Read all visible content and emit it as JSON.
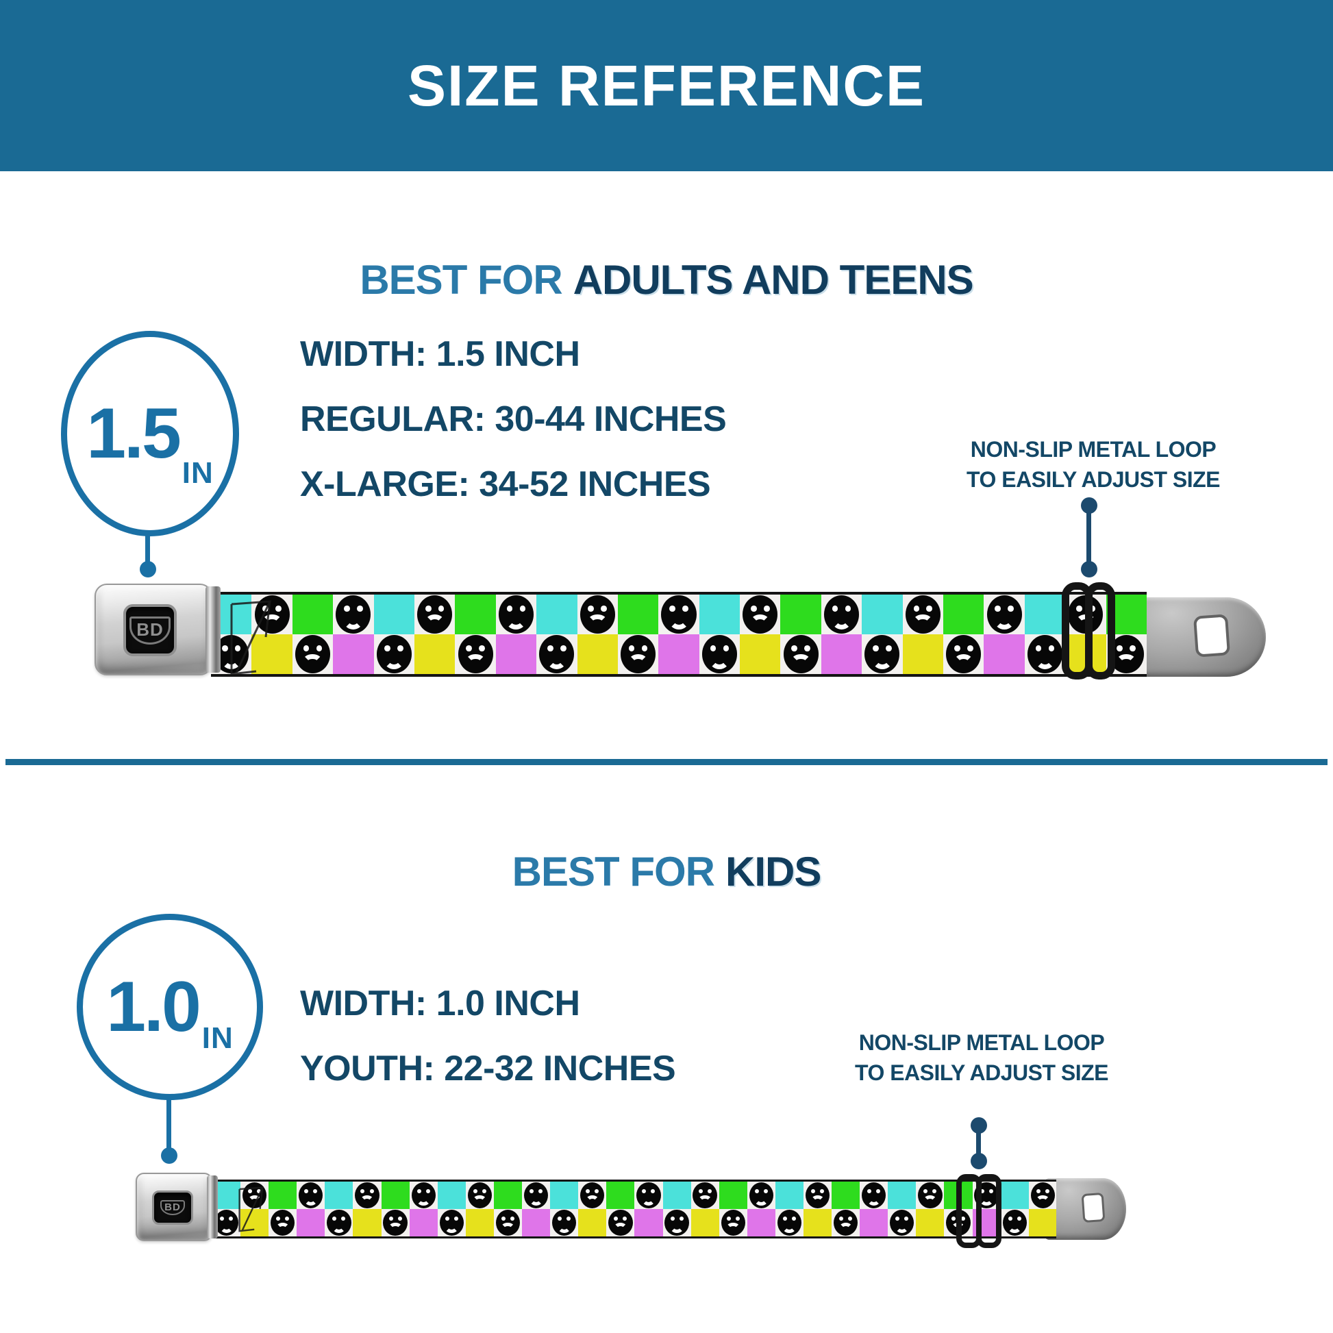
{
  "banner": {
    "title": "SIZE REFERENCE"
  },
  "sections": [
    {
      "heading_light": "BEST FOR",
      "heading_dark": "ADULTS AND TEENS",
      "badge": {
        "value": "1.5",
        "unit": "IN"
      },
      "specs": [
        "WIDTH: 1.5 INCH",
        "REGULAR: 30-44 INCHES",
        "X-LARGE: 34-52 INCHES"
      ],
      "callout": [
        "NON-SLIP METAL LOOP",
        "TO EASILY ADJUST SIZE"
      ]
    },
    {
      "heading_light": "BEST FOR",
      "heading_dark": "KIDS",
      "badge": {
        "value": "1.0",
        "unit": "IN"
      },
      "specs": [
        "WIDTH: 1.0 INCH",
        "YOUTH: 22-32 INCHES"
      ],
      "callout": [
        "NON-SLIP METAL LOOP",
        "TO EASILY ADJUST SIZE"
      ]
    }
  ],
  "belt": {
    "logo_text": "BD",
    "faces": [
      "frown",
      "smile"
    ],
    "colors": {
      "green": "#2edc1e",
      "cyan": "#4be1da",
      "yellow": "#e6e11c",
      "magenta": "#df75e9",
      "webbing_white": "#f3f1ef",
      "face_black": "#070707"
    },
    "columns": {
      "adults": 23,
      "kids": 30
    }
  },
  "colors": {
    "banner_bg": "#1a6a94",
    "heading_light": "#2b7aa9",
    "heading_dark": "#113d5d",
    "navy_text": "#134766",
    "badge_blue": "#1a70a5",
    "connector": "#1c4a6e",
    "divider": "#1a6a94"
  }
}
